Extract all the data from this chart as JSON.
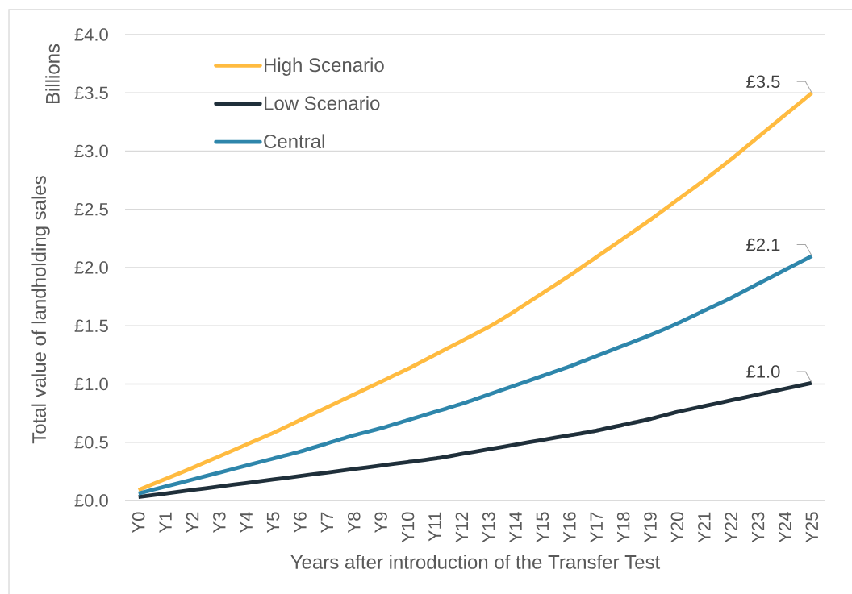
{
  "chart_data": {
    "type": "line",
    "xlabel": "Years after introduction of the Transfer Test",
    "ylabel": "Total value of landholding sales",
    "annotations": [
      "Billions"
    ],
    "categories": [
      "Y0",
      "Y1",
      "Y2",
      "Y3",
      "Y4",
      "Y5",
      "Y6",
      "Y7",
      "Y8",
      "Y9",
      "Y10",
      "Y11",
      "Y12",
      "Y13",
      "Y14",
      "Y15",
      "Y16",
      "Y17",
      "Y18",
      "Y19",
      "Y20",
      "Y21",
      "Y22",
      "Y23",
      "Y24",
      "Y25"
    ],
    "series": [
      {
        "name": "High Scenario",
        "color": "#ffbb40",
        "values": [
          0.09,
          0.185,
          0.28,
          0.38,
          0.48,
          0.58,
          0.69,
          0.8,
          0.91,
          1.02,
          1.13,
          1.25,
          1.37,
          1.49,
          1.63,
          1.78,
          1.93,
          2.09,
          2.25,
          2.41,
          2.58,
          2.75,
          2.93,
          3.12,
          3.31,
          3.5
        ],
        "value_labels": [
          null,
          null,
          null,
          null,
          null,
          null,
          null,
          null,
          null,
          null,
          null,
          null,
          null,
          null,
          null,
          null,
          null,
          null,
          null,
          null,
          null,
          null,
          null,
          null,
          null,
          "£3.5"
        ]
      },
      {
        "name": "Low Scenario",
        "color": "#1f2f3a",
        "values": [
          0.03,
          0.06,
          0.09,
          0.12,
          0.15,
          0.18,
          0.21,
          0.24,
          0.27,
          0.3,
          0.33,
          0.36,
          0.4,
          0.44,
          0.48,
          0.52,
          0.56,
          0.6,
          0.65,
          0.7,
          0.76,
          0.81,
          0.86,
          0.91,
          0.96,
          1.01
        ],
        "value_labels": [
          null,
          null,
          null,
          null,
          null,
          null,
          null,
          null,
          null,
          null,
          null,
          null,
          null,
          null,
          null,
          null,
          null,
          null,
          null,
          null,
          null,
          null,
          null,
          null,
          null,
          "£1.0"
        ]
      },
      {
        "name": "Central",
        "color": "#2e86ab",
        "values": [
          0.06,
          0.12,
          0.18,
          0.24,
          0.3,
          0.36,
          0.42,
          0.49,
          0.56,
          0.62,
          0.69,
          0.76,
          0.83,
          0.91,
          0.99,
          1.07,
          1.15,
          1.24,
          1.33,
          1.42,
          1.52,
          1.63,
          1.74,
          1.86,
          1.98,
          2.1
        ],
        "value_labels": [
          null,
          null,
          null,
          null,
          null,
          null,
          null,
          null,
          null,
          null,
          null,
          null,
          null,
          null,
          null,
          null,
          null,
          null,
          null,
          null,
          null,
          null,
          null,
          null,
          null,
          "£2.1"
        ]
      }
    ],
    "ylim": [
      0,
      4
    ],
    "yticks": [
      {
        "value": 0,
        "label": "£0.0"
      },
      {
        "value": 0.5,
        "label": "£0.5"
      },
      {
        "value": 1,
        "label": "£1.0"
      },
      {
        "value": 1.5,
        "label": "£1.5"
      },
      {
        "value": 2,
        "label": "£2.0"
      },
      {
        "value": 2.5,
        "label": "£2.5"
      },
      {
        "value": 3,
        "label": "£3.0"
      },
      {
        "value": 3.5,
        "label": "£3.5"
      },
      {
        "value": 4,
        "label": "£4.0"
      }
    ],
    "grid": "y",
    "legend": "top left"
  }
}
